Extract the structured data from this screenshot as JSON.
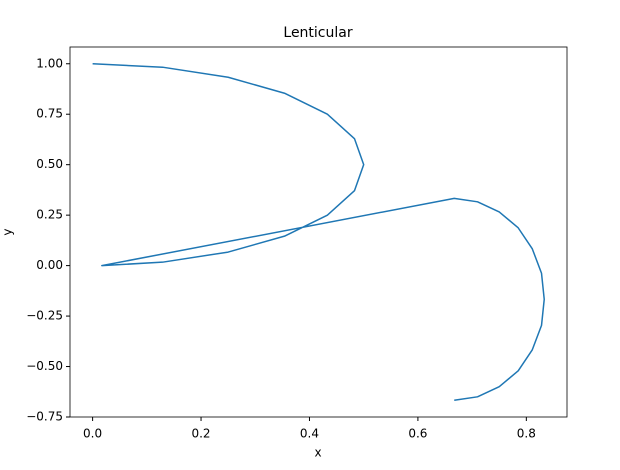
{
  "chart_data": {
    "type": "line",
    "title": "Lenticular",
    "x_label": "x",
    "y_label": "y",
    "x": [
      0,
      0.129,
      0.25,
      0.354,
      0.433,
      0.483,
      0.5,
      0.483,
      0.433,
      0.354,
      0.25,
      0.129,
      0.017,
      0.667,
      0.71,
      0.75,
      0.785,
      0.811,
      0.828,
      0.833,
      0.828,
      0.811,
      0.785,
      0.75,
      0.71,
      0.667
    ],
    "y": [
      1,
      0.983,
      0.933,
      0.854,
      0.75,
      0.629,
      0.5,
      0.371,
      0.25,
      0.146,
      0.067,
      0.017,
      0,
      0.333,
      0.316,
      0.266,
      0.187,
      0.083,
      -0.038,
      -0.167,
      -0.296,
      -0.417,
      -0.521,
      -0.6,
      -0.65,
      -0.667
    ],
    "color": "#1f77b4",
    "xlim": [
      -0.0417,
      0.875
    ],
    "ylim": [
      -0.75,
      1.083
    ],
    "xticks": [
      {
        "value": 0,
        "label": "0.0"
      },
      {
        "value": 0.2,
        "label": "0.2"
      },
      {
        "value": 0.4,
        "label": "0.4"
      },
      {
        "value": 0.6,
        "label": "0.6"
      },
      {
        "value": 0.8,
        "label": "0.8"
      }
    ],
    "yticks": [
      {
        "value": -0.75,
        "label": "−0.75"
      },
      {
        "value": -0.5,
        "label": "−0.50"
      },
      {
        "value": -0.25,
        "label": "−0.25"
      },
      {
        "value": 0,
        "label": "0.00"
      },
      {
        "value": 0.25,
        "label": "0.25"
      },
      {
        "value": 0.5,
        "label": "0.50"
      },
      {
        "value": 0.75,
        "label": "0.75"
      },
      {
        "value": 1,
        "label": "1.00"
      }
    ],
    "grid": false
  }
}
